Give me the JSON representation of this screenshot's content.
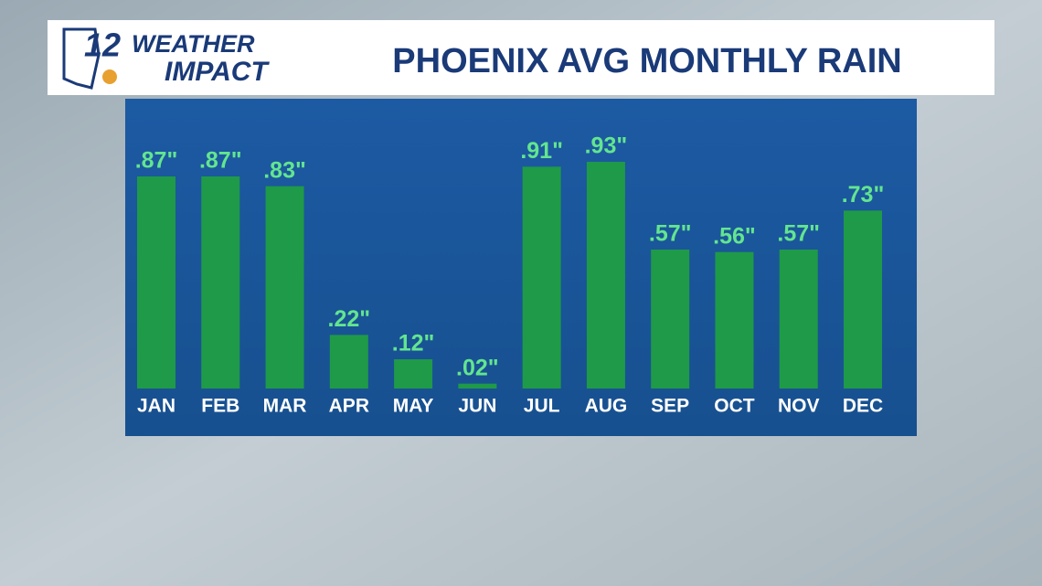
{
  "logo": {
    "number": "12",
    "line1": "WEATHER",
    "line2": "IMPACT"
  },
  "chart_data": {
    "type": "bar",
    "title": "PHOENIX AVG MONTHLY RAIN",
    "categories": [
      "JAN",
      "FEB",
      "MAR",
      "APR",
      "MAY",
      "JUN",
      "JUL",
      "AUG",
      "SEP",
      "OCT",
      "NOV",
      "DEC"
    ],
    "values": [
      0.87,
      0.87,
      0.83,
      0.22,
      0.12,
      0.02,
      0.91,
      0.93,
      0.57,
      0.56,
      0.57,
      0.73
    ],
    "value_labels": [
      ".87\"",
      ".87\"",
      ".83\"",
      ".22\"",
      ".12\"",
      ".02\"",
      ".91\"",
      ".93\"",
      ".57\"",
      ".56\"",
      ".57\"",
      ".73\""
    ],
    "color": "#1f9a48",
    "label_color": "#63e58f"
  }
}
